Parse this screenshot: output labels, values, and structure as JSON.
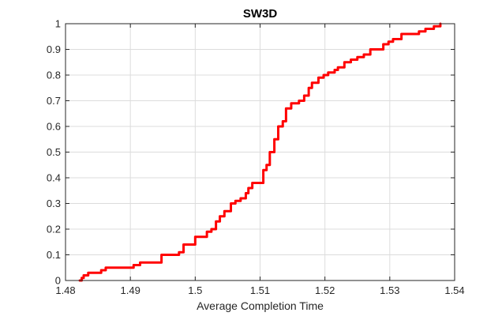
{
  "chart_data": {
    "type": "line",
    "title": "SW3D",
    "xlabel": "Average Completion Time",
    "ylabel": "",
    "xlim": [
      1.48,
      1.54
    ],
    "ylim": [
      0,
      1
    ],
    "xticks": [
      1.48,
      1.49,
      1.5,
      1.51,
      1.52,
      1.53,
      1.54
    ],
    "xtick_labels": [
      "1.48",
      "1.49",
      "1.5",
      "1.51",
      "1.52",
      "1.53",
      "1.54"
    ],
    "yticks": [
      0,
      0.1,
      0.2,
      0.3,
      0.4,
      0.5,
      0.6,
      0.7,
      0.8,
      0.9,
      1
    ],
    "ytick_labels": [
      "0",
      "0.1",
      "0.2",
      "0.3",
      "0.4",
      "0.5",
      "0.6",
      "0.7",
      "0.8",
      "0.9",
      "1"
    ],
    "grid": true,
    "line_color": "#ff0000",
    "series": [
      {
        "x": [
          1.4822,
          1.4825,
          1.4828,
          1.4835,
          1.4848,
          1.4855,
          1.4862,
          1.4885,
          1.4905,
          1.4915,
          1.4925,
          1.4948,
          1.4955,
          1.4975,
          1.4982,
          1.4988,
          1.5,
          1.5012,
          1.5018,
          1.5025,
          1.5032,
          1.5038,
          1.5045,
          1.5055,
          1.5062,
          1.507,
          1.5078,
          1.5082,
          1.5088,
          1.5095,
          1.5105,
          1.511,
          1.5115,
          1.5122,
          1.5128,
          1.5135,
          1.514,
          1.5148,
          1.5152,
          1.516,
          1.5168,
          1.5175,
          1.518,
          1.5185,
          1.519,
          1.5198,
          1.5205,
          1.5215,
          1.522,
          1.523,
          1.524,
          1.525,
          1.526,
          1.527,
          1.528,
          1.529,
          1.5298,
          1.5305,
          1.5318,
          1.5338,
          1.5345,
          1.5355,
          1.5368,
          1.5378
        ],
        "y": [
          0.0,
          0.01,
          0.02,
          0.03,
          0.03,
          0.04,
          0.05,
          0.05,
          0.06,
          0.07,
          0.07,
          0.1,
          0.1,
          0.11,
          0.14,
          0.14,
          0.17,
          0.17,
          0.19,
          0.2,
          0.23,
          0.25,
          0.27,
          0.3,
          0.31,
          0.32,
          0.34,
          0.36,
          0.38,
          0.38,
          0.43,
          0.45,
          0.5,
          0.55,
          0.6,
          0.62,
          0.67,
          0.69,
          0.69,
          0.7,
          0.72,
          0.75,
          0.77,
          0.77,
          0.79,
          0.8,
          0.81,
          0.82,
          0.83,
          0.85,
          0.86,
          0.87,
          0.88,
          0.9,
          0.9,
          0.92,
          0.93,
          0.94,
          0.96,
          0.96,
          0.97,
          0.98,
          0.99,
          1.0
        ]
      }
    ]
  }
}
